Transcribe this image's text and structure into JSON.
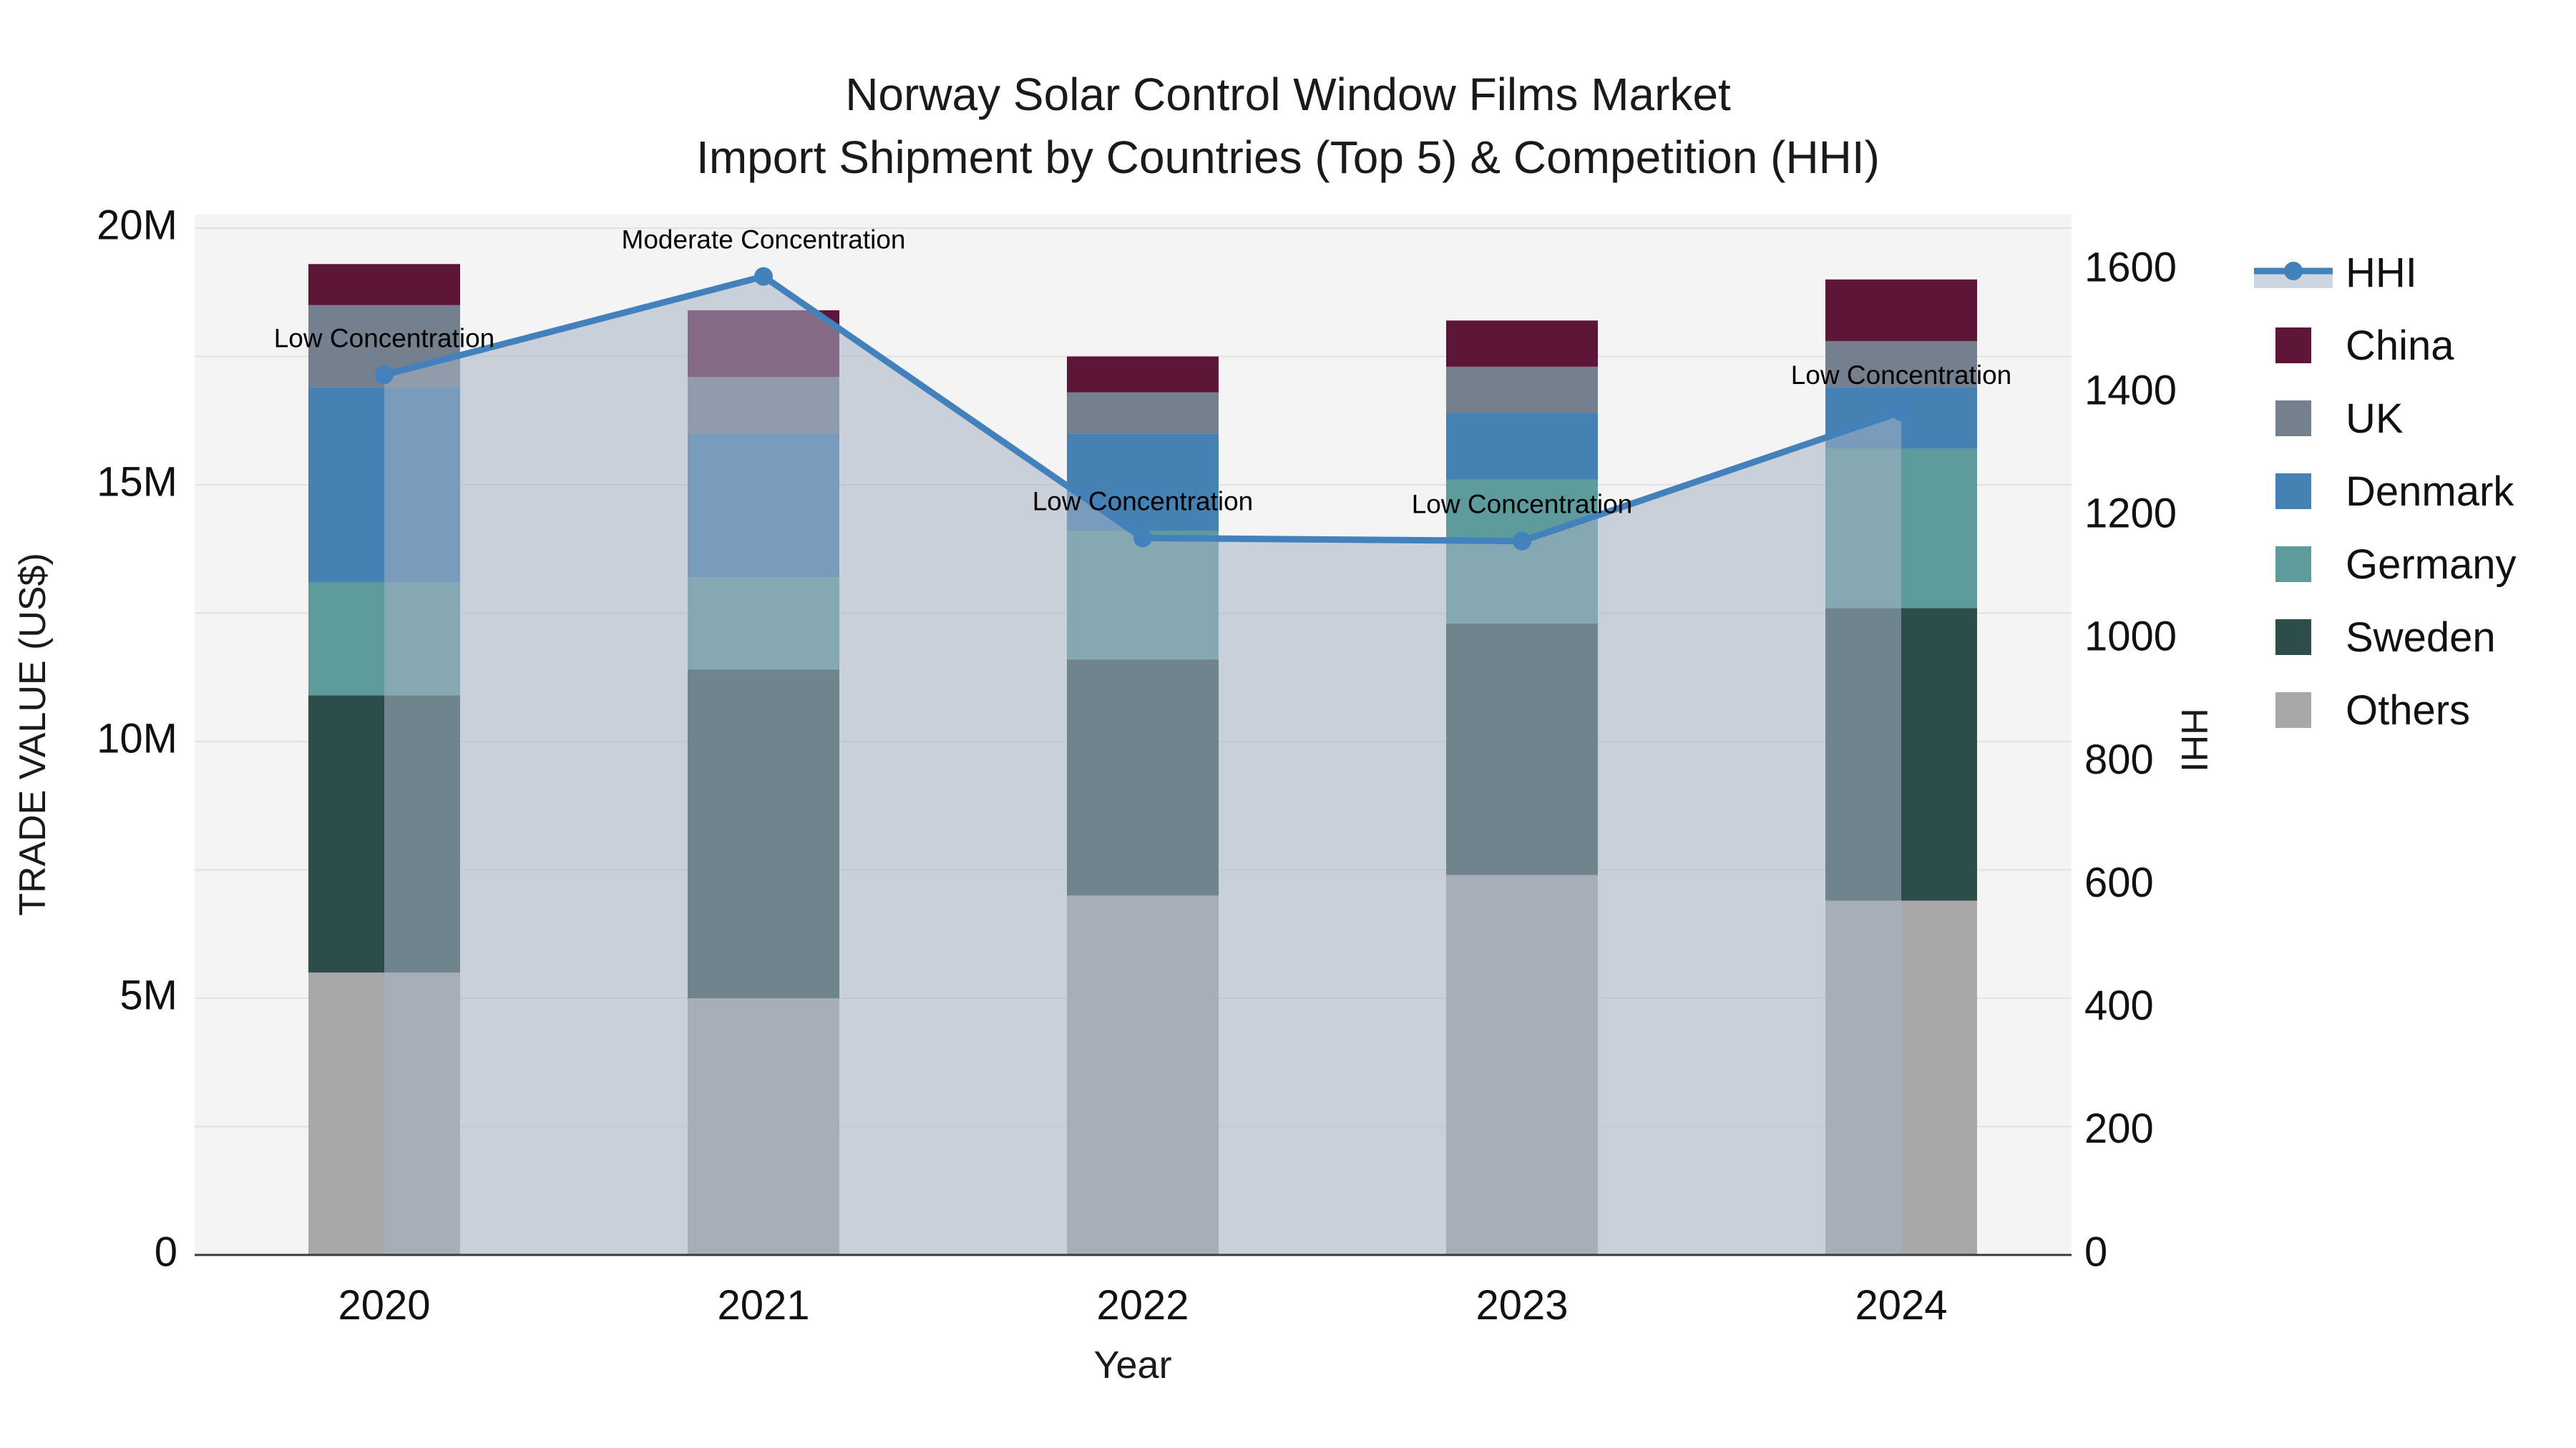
{
  "title": {
    "line1": "Norway Solar Control Window Films Market",
    "line2": "Import Shipment by Countries (Top 5) & Competition (HHI)"
  },
  "axes": {
    "left": {
      "title": "TRADE VALUE (US$)",
      "ticks": [
        {
          "v": 0,
          "label": "0"
        },
        {
          "v": 5,
          "label": "5M"
        },
        {
          "v": 10,
          "label": "10M"
        },
        {
          "v": 15,
          "label": "15M"
        },
        {
          "v": 20,
          "label": "20M"
        }
      ]
    },
    "right": {
      "title": "HHI",
      "ticks": [
        0,
        200,
        400,
        600,
        800,
        1000,
        1200,
        1400,
        1600
      ]
    },
    "x": {
      "title": "Year",
      "categories": [
        "2020",
        "2021",
        "2022",
        "2023",
        "2024"
      ]
    }
  },
  "legend": {
    "items": [
      {
        "label": "HHI",
        "type": "line",
        "color": "#4281bb"
      },
      {
        "label": "China",
        "type": "square",
        "color": "#5e1638"
      },
      {
        "label": "UK",
        "type": "square",
        "color": "#75808f"
      },
      {
        "label": "Denmark",
        "type": "square",
        "color": "#4581b2"
      },
      {
        "label": "Germany",
        "type": "square",
        "color": "#5d9b9d"
      },
      {
        "label": "Sweden",
        "type": "square",
        "color": "#2d4d4b"
      },
      {
        "label": "Others",
        "type": "square",
        "color": "#a8a8a8"
      }
    ]
  },
  "colors": {
    "plot_bg": "#f4f4f4",
    "grid": "#e1e1e1",
    "axis_line": "#3a3a3a",
    "hhi_line": "#4281bb",
    "hhi_fill": "rgba(166,178,197,0.55)",
    "legend_band": "#cdd5e0",
    "text": "#111111"
  },
  "chart_data": {
    "type": "bar+line",
    "title": "Norway Solar Control Window Films Market — Import Shipment by Countries (Top 5) & Competition (HHI)",
    "categories": [
      "2020",
      "2021",
      "2022",
      "2023",
      "2024"
    ],
    "bar_unit": "million US$",
    "stack_order_bottom_to_top": [
      "Others",
      "Sweden",
      "Germany",
      "Denmark",
      "UK",
      "China"
    ],
    "series": [
      {
        "name": "Others",
        "color": "#a8a8a8",
        "values": [
          5.5,
          5.0,
          7.0,
          7.4,
          6.9
        ]
      },
      {
        "name": "Sweden",
        "color": "#2d4d4b",
        "values": [
          5.4,
          6.4,
          4.6,
          4.9,
          5.7
        ]
      },
      {
        "name": "Germany",
        "color": "#5d9b9d",
        "values": [
          2.2,
          1.8,
          2.5,
          2.8,
          3.1
        ]
      },
      {
        "name": "Denmark",
        "color": "#4581b2",
        "values": [
          3.8,
          2.8,
          1.9,
          1.3,
          1.2
        ]
      },
      {
        "name": "UK",
        "color": "#75808f",
        "values": [
          1.6,
          1.1,
          0.8,
          0.9,
          0.9
        ]
      },
      {
        "name": "China",
        "color": "#5e1638",
        "values": [
          0.8,
          1.3,
          0.7,
          0.9,
          1.2
        ]
      }
    ],
    "bar_totals": [
      19.3,
      18.4,
      17.5,
      18.2,
      19.0
    ],
    "line": {
      "name": "HHI",
      "values": [
        1430,
        1590,
        1165,
        1160,
        1370
      ],
      "color": "#4281bb",
      "fill": "rgba(166,178,197,0.55)"
    },
    "annotations": [
      {
        "x": 0,
        "text": "Low Concentration"
      },
      {
        "x": 1,
        "text": "Moderate Concentration"
      },
      {
        "x": 2,
        "text": "Low Concentration"
      },
      {
        "x": 3,
        "text": "Low Concentration"
      },
      {
        "x": 4,
        "text": "Low Concentration"
      }
    ],
    "xlabel": "Year",
    "ylabel_left": "TRADE VALUE (US$)",
    "ylabel_right": "HHI",
    "ylim_left_millions": [
      0,
      20
    ],
    "ylim_right": [
      0,
      1600
    ],
    "grid": true,
    "legend_position": "right-top"
  }
}
